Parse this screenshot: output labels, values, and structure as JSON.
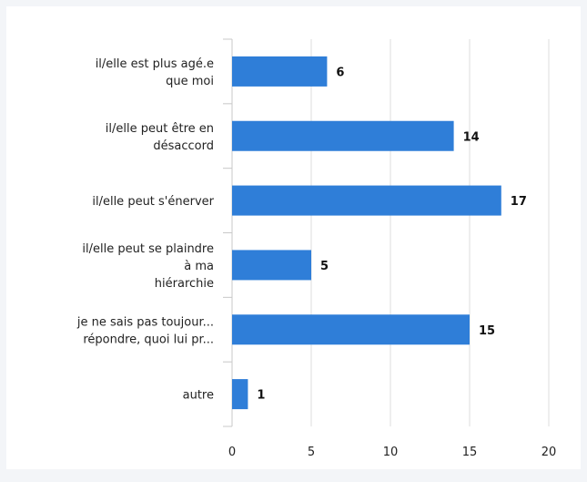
{
  "chart_data": {
    "type": "bar",
    "orientation": "horizontal",
    "categories": [
      [
        "il/elle est plus agé.e",
        "que moi"
      ],
      [
        "il/elle peut être en",
        "désaccord"
      ],
      [
        "il/elle peut s'énerver"
      ],
      [
        "il/elle peut se plaindre",
        "à ma",
        "hiérarchie"
      ],
      [
        "je ne sais pas toujour...",
        "répondre, quoi lui pr..."
      ],
      [
        "autre"
      ]
    ],
    "values": [
      6,
      14,
      17,
      5,
      15,
      1
    ],
    "value_labels": [
      "6",
      "14",
      "17",
      "5",
      "15",
      "1"
    ],
    "xlim": [
      0,
      20
    ],
    "xticks": [
      0,
      5,
      10,
      15,
      20
    ],
    "xtick_labels": [
      "0",
      "5",
      "10",
      "15",
      "20"
    ],
    "grid": true,
    "bar_color": "#2f7ed8",
    "grid_color": "#dcdcdc",
    "axis_color": "#c8c8c8"
  }
}
